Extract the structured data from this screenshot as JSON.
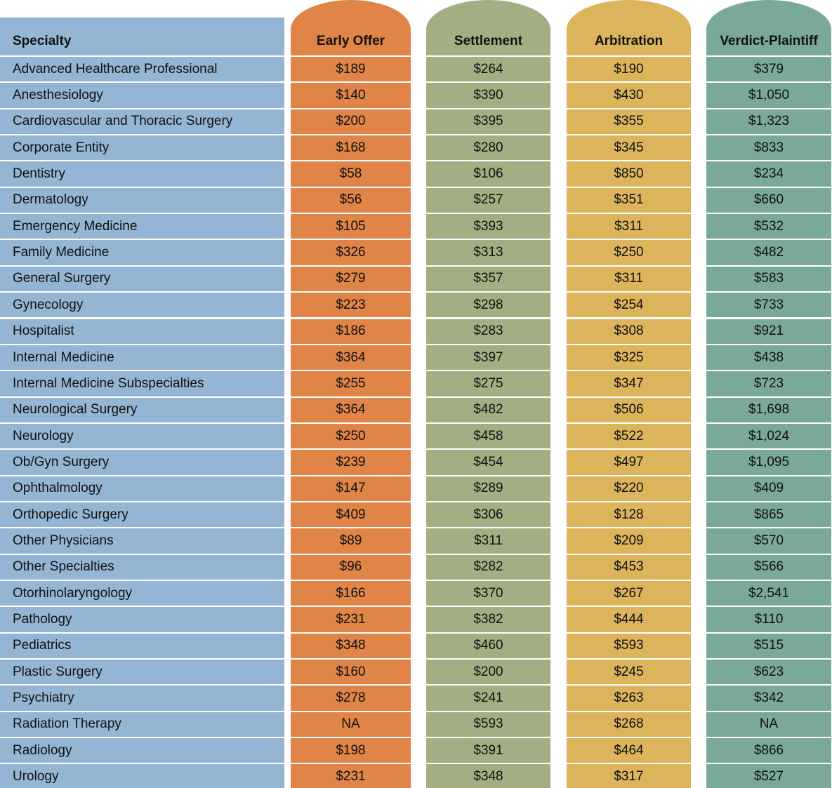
{
  "table": {
    "header": [
      "Specialty",
      "Early Offer",
      "Settlement",
      "Arbitration",
      "Verdict-Plaintiff"
    ],
    "rows": [
      [
        "Advanced Healthcare Professional",
        "$189",
        "$264",
        "$190",
        "$379"
      ],
      [
        "Anesthesiology",
        "$140",
        "$390",
        "$430",
        "$1,050"
      ],
      [
        "Cardiovascular and Thoracic Surgery",
        "$200",
        "$395",
        "$355",
        "$1,323"
      ],
      [
        "Corporate Entity",
        "$168",
        "$280",
        "$345",
        "$833"
      ],
      [
        "Dentistry",
        "$58",
        "$106",
        "$850",
        "$234"
      ],
      [
        "Dermatology",
        "$56",
        "$257",
        "$351",
        "$660"
      ],
      [
        "Emergency Medicine",
        "$105",
        "$393",
        "$311",
        "$532"
      ],
      [
        "Family Medicine",
        "$326",
        "$313",
        "$250",
        "$482"
      ],
      [
        "General Surgery",
        "$279",
        "$357",
        "$311",
        "$583"
      ],
      [
        "Gynecology",
        "$223",
        "$298",
        "$254",
        "$733"
      ],
      [
        "Hospitalist",
        "$186",
        "$283",
        "$308",
        "$921"
      ],
      [
        "Internal Medicine",
        "$364",
        "$397",
        "$325",
        "$438"
      ],
      [
        "Internal Medicine Subspecialties",
        "$255",
        "$275",
        "$347",
        "$723"
      ],
      [
        "Neurological Surgery",
        "$364",
        "$482",
        "$506",
        "$1,698"
      ],
      [
        "Neurology",
        "$250",
        "$458",
        "$522",
        "$1,024"
      ],
      [
        "Ob/Gyn Surgery",
        "$239",
        "$454",
        "$497",
        "$1,095"
      ],
      [
        "Ophthalmology",
        "$147",
        "$289",
        "$220",
        "$409"
      ],
      [
        "Orthopedic Surgery",
        "$409",
        "$306",
        "$128",
        "$865"
      ],
      [
        "Other Physicians",
        "$89",
        "$311",
        "$209",
        "$570"
      ],
      [
        "Other Specialties",
        "$96",
        "$282",
        "$453",
        "$566"
      ],
      [
        "Otorhinolaryngology",
        "$166",
        "$370",
        "$267",
        "$2,541"
      ],
      [
        "Pathology",
        "$231",
        "$382",
        "$444",
        "$110"
      ],
      [
        "Pediatrics",
        "$348",
        "$460",
        "$593",
        "$515"
      ],
      [
        "Plastic Surgery",
        "$160",
        "$200",
        "$245",
        "$623"
      ],
      [
        "Psychiatry",
        "$278",
        "$241",
        "$263",
        "$342"
      ],
      [
        "Radiation Therapy",
        "NA",
        "$593",
        "$268",
        "NA"
      ],
      [
        "Radiology",
        "$198",
        "$391",
        "$464",
        "$866"
      ],
      [
        "Urology",
        "$231",
        "$348",
        "$317",
        "$527"
      ]
    ]
  }
}
